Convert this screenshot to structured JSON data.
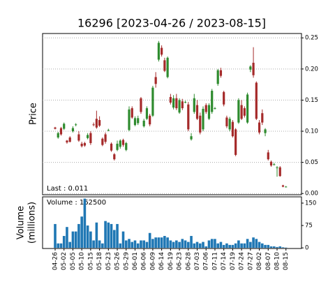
{
  "chart_data": [
    {
      "type": "candlestick",
      "title": "16296   [2023-04-26 / 2023-08-15]",
      "ylabel": "Price",
      "annotation": "Last : 0.011",
      "ylim": [
        -0.002,
        0.257
      ],
      "yticks": [
        {
          "value": 0,
          "label": "0.00"
        },
        {
          "value": 0.05,
          "label": "0.05"
        },
        {
          "value": 0.1,
          "label": "0.10"
        },
        {
          "value": 0.15,
          "label": "0.15"
        },
        {
          "value": 0.2,
          "label": "0.20"
        },
        {
          "value": 0.25,
          "label": "0.25"
        }
      ],
      "grid": true,
      "up_color": "#2e8b2e",
      "down_color": "#a52a2a",
      "open": [
        0.106,
        0.09,
        0.105,
        0.104,
        0.085,
        0.09,
        0.1,
        0.11,
        0.095,
        0.08,
        0.081,
        0.089,
        0.097,
        0.111,
        0.12,
        0.118,
        0.088,
        0.095,
        0.102,
        0.08,
        0.063,
        0.07,
        0.075,
        0.086,
        0.07,
        0.102,
        0.137,
        0.11,
        0.113,
        0.153,
        0.108,
        0.12,
        0.125,
        0.125,
        0.187,
        0.215,
        0.234,
        0.214,
        0.187,
        0.155,
        0.138,
        0.153,
        0.13,
        0.148,
        0.147,
        0.143,
        0.087,
        0.131,
        0.142,
        0.125,
        0.103,
        0.142,
        0.12,
        0.131,
        0.137,
        0.176,
        0.198,
        0.163,
        0.122,
        0.103,
        0.115,
        0.103,
        0.114,
        0.142,
        0.137,
        0.114,
        0.199,
        0.21,
        0.178,
        0.114,
        0.129,
        0.097,
        0.066,
        0.051,
        0.047,
        0.042,
        0.042,
        0.013,
        0.011
      ],
      "high": [
        0.107,
        0.099,
        0.107,
        0.114,
        0.086,
        0.092,
        0.108,
        0.113,
        0.1,
        0.083,
        0.083,
        0.097,
        0.1,
        0.114,
        0.133,
        0.124,
        0.09,
        0.098,
        0.104,
        0.082,
        0.065,
        0.085,
        0.087,
        0.088,
        0.083,
        0.14,
        0.14,
        0.124,
        0.125,
        0.155,
        0.12,
        0.14,
        0.128,
        0.173,
        0.195,
        0.245,
        0.238,
        0.218,
        0.22,
        0.16,
        0.158,
        0.16,
        0.153,
        0.152,
        0.149,
        0.147,
        0.097,
        0.16,
        0.15,
        0.13,
        0.14,
        0.145,
        0.145,
        0.168,
        0.139,
        0.2,
        0.202,
        0.165,
        0.125,
        0.123,
        0.118,
        0.105,
        0.153,
        0.15,
        0.14,
        0.162,
        0.206,
        0.235,
        0.18,
        0.118,
        0.135,
        0.105,
        0.07,
        0.053,
        0.049,
        0.044,
        0.044,
        0.014,
        0.012
      ],
      "low": [
        0.103,
        0.088,
        0.093,
        0.102,
        0.08,
        0.082,
        0.098,
        0.108,
        0.083,
        0.074,
        0.075,
        0.087,
        0.078,
        0.108,
        0.104,
        0.107,
        0.076,
        0.08,
        0.1,
        0.067,
        0.053,
        0.068,
        0.072,
        0.075,
        0.068,
        0.1,
        0.12,
        0.108,
        0.11,
        0.128,
        0.106,
        0.118,
        0.108,
        0.123,
        0.17,
        0.212,
        0.22,
        0.195,
        0.185,
        0.143,
        0.135,
        0.134,
        0.128,
        0.134,
        0.145,
        0.1,
        0.085,
        0.128,
        0.118,
        0.095,
        0.1,
        0.128,
        0.118,
        0.128,
        0.135,
        0.173,
        0.186,
        0.14,
        0.105,
        0.1,
        0.09,
        0.06,
        0.112,
        0.118,
        0.122,
        0.112,
        0.195,
        0.186,
        0.118,
        0.095,
        0.11,
        0.092,
        0.053,
        0.043,
        0.045,
        0.027,
        0.027,
        0.01,
        0.01
      ],
      "close": [
        0.104,
        0.097,
        0.095,
        0.112,
        0.082,
        0.083,
        0.105,
        0.111,
        0.085,
        0.076,
        0.077,
        0.094,
        0.081,
        0.11,
        0.106,
        0.109,
        0.078,
        0.083,
        0.102,
        0.069,
        0.055,
        0.08,
        0.085,
        0.078,
        0.081,
        0.135,
        0.122,
        0.121,
        0.121,
        0.131,
        0.117,
        0.137,
        0.111,
        0.17,
        0.176,
        0.242,
        0.223,
        0.197,
        0.218,
        0.146,
        0.153,
        0.137,
        0.15,
        0.137,
        0.147,
        0.103,
        0.092,
        0.153,
        0.12,
        0.098,
        0.136,
        0.131,
        0.142,
        0.165,
        0.137,
        0.198,
        0.189,
        0.143,
        0.108,
        0.12,
        0.092,
        0.062,
        0.15,
        0.12,
        0.125,
        0.159,
        0.204,
        0.19,
        0.12,
        0.098,
        0.114,
        0.103,
        0.055,
        0.045,
        0.047,
        0.042,
        0.028,
        0.011,
        0.011
      ]
    },
    {
      "type": "bar",
      "ylabel": [
        "Volume",
        "(millions)"
      ],
      "annotation": "Volume : 162500",
      "color": "#1f77b4",
      "ylim": [
        -2,
        171
      ],
      "yticks": [
        0,
        75,
        150
      ],
      "categories": [
        "04-26",
        null,
        null,
        "05-02",
        null,
        null,
        "05-05",
        null,
        null,
        "05-10",
        null,
        null,
        "05-15",
        null,
        null,
        "05-18",
        null,
        null,
        "05-23",
        null,
        null,
        "05-26",
        null,
        null,
        "05-29",
        null,
        null,
        "06-01",
        null,
        null,
        "06-06",
        null,
        null,
        "06-09",
        null,
        null,
        "06-14",
        null,
        null,
        "06-19",
        null,
        null,
        "06-23",
        null,
        null,
        "06-28",
        null,
        null,
        "07-03",
        null,
        null,
        "07-06",
        null,
        null,
        "07-11",
        null,
        null,
        "07-14",
        null,
        null,
        "07-19",
        null,
        null,
        "07-24",
        null,
        null,
        "07-27",
        null,
        null,
        "08-02",
        null,
        null,
        "08-07",
        null,
        null,
        "08-10",
        null,
        null,
        "08-15"
      ],
      "values": [
        80,
        15,
        15,
        40,
        70,
        20,
        55,
        55,
        80,
        105,
        165,
        75,
        55,
        25,
        85,
        25,
        15,
        90,
        85,
        80,
        60,
        80,
        15,
        55,
        25,
        30,
        20,
        25,
        15,
        25,
        25,
        20,
        50,
        30,
        35,
        35,
        35,
        40,
        35,
        25,
        20,
        25,
        20,
        30,
        25,
        20,
        40,
        15,
        20,
        15,
        20,
        5,
        25,
        30,
        30,
        15,
        20,
        10,
        15,
        10,
        10,
        15,
        25,
        15,
        15,
        30,
        20,
        35,
        30,
        20,
        15,
        10,
        10,
        5,
        5,
        3,
        5,
        2,
        1
      ]
    }
  ]
}
